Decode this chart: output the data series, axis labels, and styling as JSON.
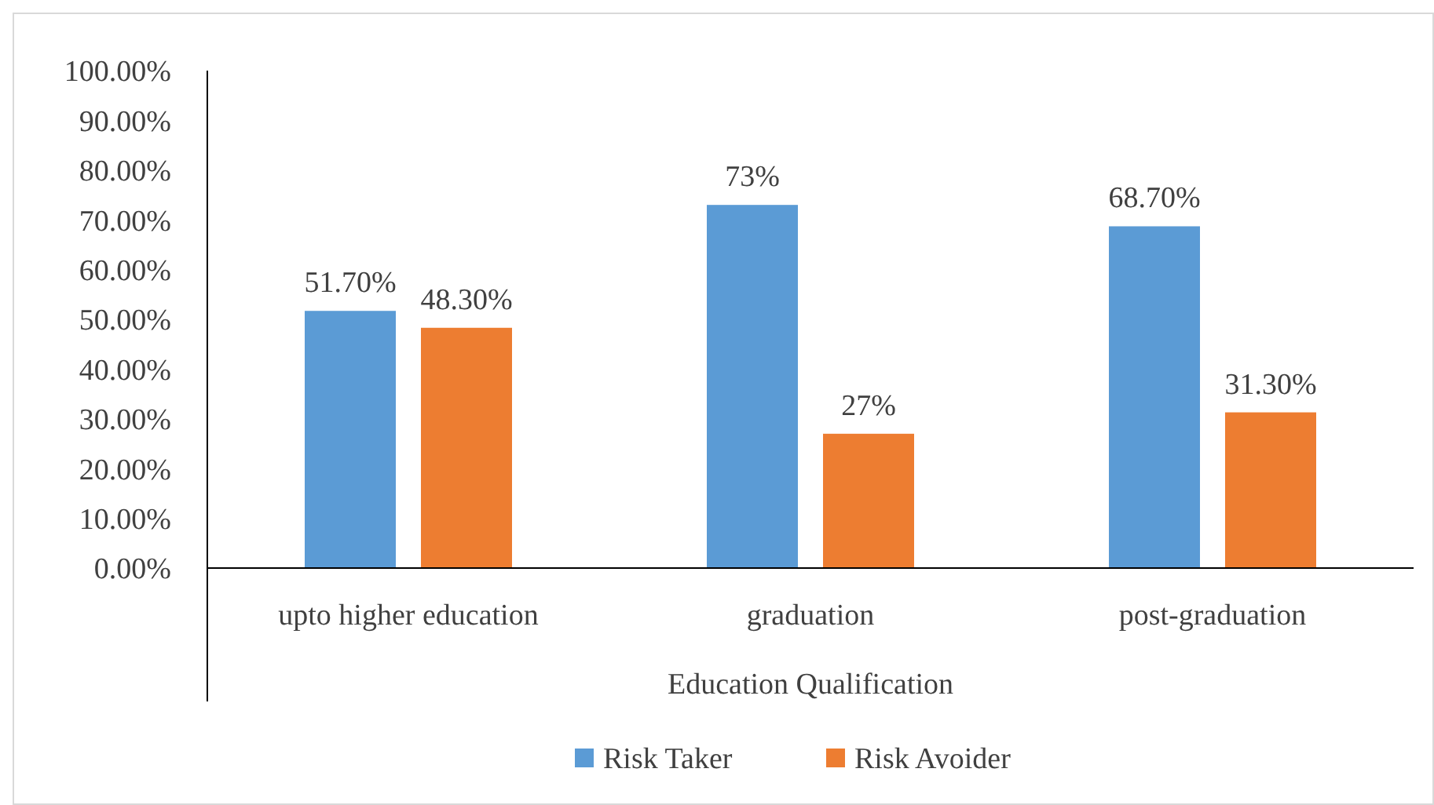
{
  "chart_data": {
    "type": "bar",
    "xlabel": "Education Qualification",
    "categories": [
      "upto higher education",
      "graduation",
      "post-graduation"
    ],
    "series": [
      {
        "name": "Risk Taker",
        "color": "#5b9bd5",
        "values": [
          51.7,
          73,
          68.7
        ],
        "value_labels": [
          "51.70%",
          "73%",
          "68.70%"
        ]
      },
      {
        "name": "Risk Avoider",
        "color": "#ed7d31",
        "values": [
          48.3,
          27,
          31.3
        ],
        "value_labels": [
          "48.30%",
          "27%",
          "31.30%"
        ]
      }
    ],
    "ylim": [
      0,
      100
    ],
    "yticks": [
      {
        "value": 0,
        "label": "0.00%"
      },
      {
        "value": 10,
        "label": "10.00%"
      },
      {
        "value": 20,
        "label": "20.00%"
      },
      {
        "value": 30,
        "label": "30.00%"
      },
      {
        "value": 40,
        "label": "40.00%"
      },
      {
        "value": 50,
        "label": "50.00%"
      },
      {
        "value": 60,
        "label": "60.00%"
      },
      {
        "value": 70,
        "label": "70.00%"
      },
      {
        "value": 80,
        "label": "80.00%"
      },
      {
        "value": 90,
        "label": "90.00%"
      },
      {
        "value": 100,
        "label": "100.00%"
      }
    ],
    "grid": false,
    "legend": "bottom"
  }
}
